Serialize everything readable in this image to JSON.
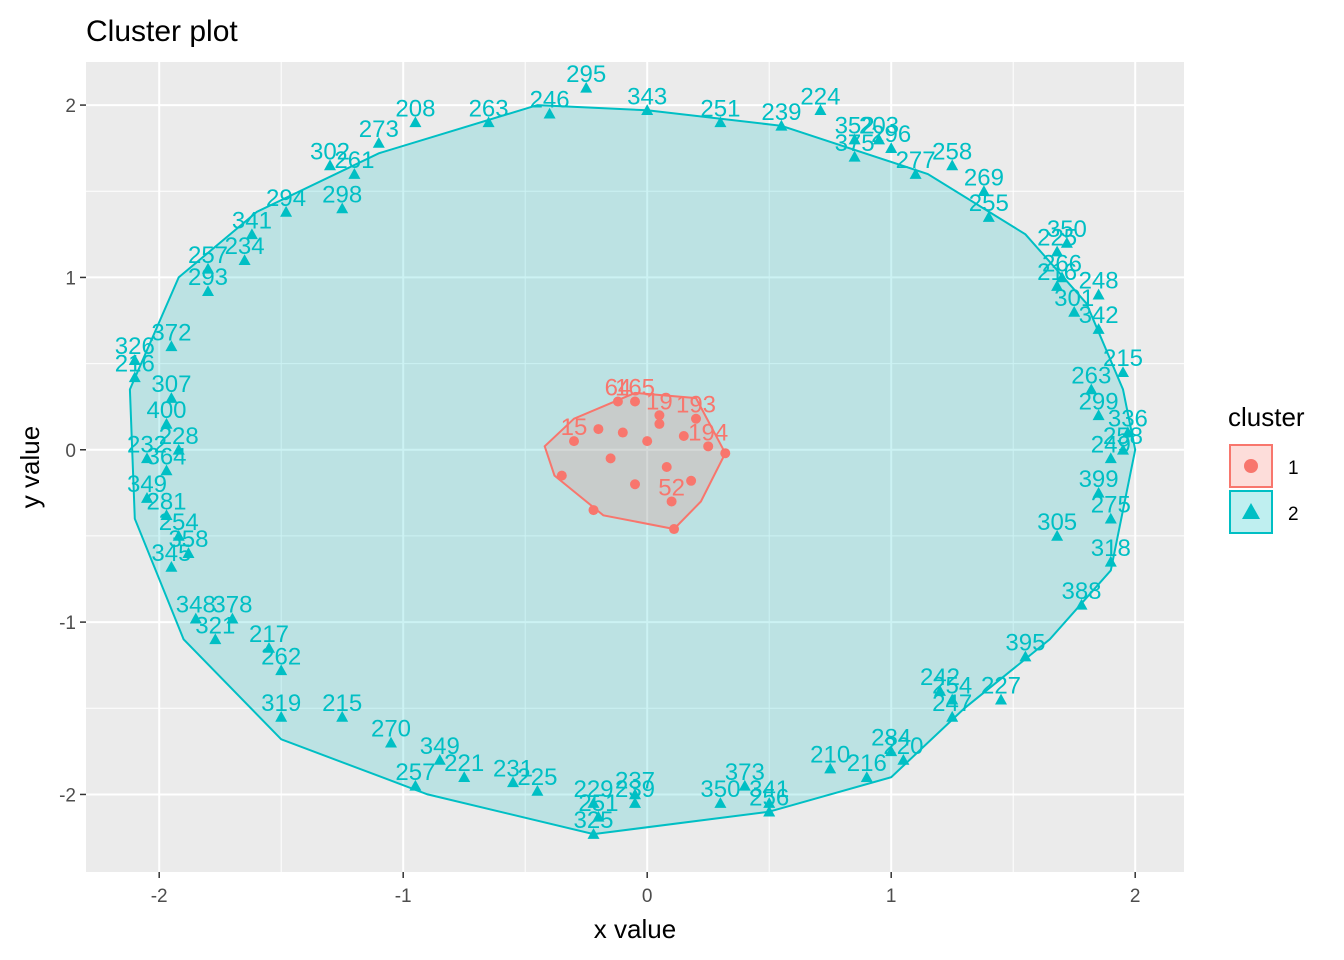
{
  "chart_data": {
    "type": "scatter",
    "title": "Cluster plot",
    "xlabel": "x value",
    "ylabel": "y value",
    "xlim": [
      -2.3,
      2.2
    ],
    "ylim": [
      -2.45,
      2.25
    ],
    "x_ticks": [
      -2,
      -1,
      0,
      1,
      2
    ],
    "y_ticks": [
      -2,
      -1,
      0,
      1,
      2
    ],
    "x_tick_labels": [
      "-2",
      "-1",
      "0",
      "1",
      "2"
    ],
    "y_tick_labels": [
      "-2",
      "-1",
      "0",
      "1",
      "2"
    ],
    "grid": true,
    "legend": {
      "title": "cluster",
      "placement": "right",
      "entries": [
        {
          "label": "1",
          "color": "#F8766D",
          "shape": "circle"
        },
        {
          "label": "2",
          "color": "#00BFC4",
          "shape": "triangle"
        }
      ]
    },
    "colors": {
      "cluster1": "#F8766D",
      "cluster2": "#00BFC4",
      "panel_background": "#EBEBEB",
      "grid": "#FFFFFF"
    },
    "series": [
      {
        "name": "1",
        "shape": "circle",
        "color": "#F8766D",
        "hull": [
          [
            -0.38,
            -0.15
          ],
          [
            -0.18,
            -0.38
          ],
          [
            0.11,
            -0.46
          ],
          [
            0.22,
            -0.3
          ],
          [
            0.32,
            -0.02
          ],
          [
            0.2,
            0.3
          ],
          [
            -0.05,
            0.33
          ],
          [
            -0.3,
            0.18
          ],
          [
            -0.42,
            0.02
          ]
        ],
        "points": [
          {
            "x": -0.12,
            "y": 0.28,
            "label": "64"
          },
          {
            "x": -0.05,
            "y": 0.28,
            "label": "165"
          },
          {
            "x": 0.05,
            "y": 0.2,
            "label": "19"
          },
          {
            "x": 0.2,
            "y": 0.18,
            "label": "193"
          },
          {
            "x": 0.25,
            "y": 0.02,
            "label": "194"
          },
          {
            "x": -0.3,
            "y": 0.05,
            "label": "15"
          },
          {
            "x": 0.1,
            "y": -0.3,
            "label": "52"
          },
          {
            "x": -0.35,
            "y": -0.15,
            "label": ""
          },
          {
            "x": -0.22,
            "y": -0.35,
            "label": ""
          },
          {
            "x": 0.11,
            "y": -0.46,
            "label": ""
          },
          {
            "x": 0.32,
            "y": -0.02,
            "label": ""
          },
          {
            "x": -0.1,
            "y": 0.1,
            "label": ""
          },
          {
            "x": 0.0,
            "y": 0.05,
            "label": ""
          },
          {
            "x": 0.08,
            "y": -0.1,
            "label": ""
          },
          {
            "x": -0.05,
            "y": -0.2,
            "label": ""
          },
          {
            "x": 0.15,
            "y": 0.08,
            "label": ""
          },
          {
            "x": -0.2,
            "y": 0.12,
            "label": ""
          },
          {
            "x": 0.18,
            "y": -0.18,
            "label": ""
          },
          {
            "x": -0.15,
            "y": -0.05,
            "label": ""
          },
          {
            "x": 0.05,
            "y": 0.15,
            "label": ""
          }
        ]
      },
      {
        "name": "2",
        "shape": "triangle",
        "color": "#00BFC4",
        "hull": [
          [
            -0.45,
            2.0
          ],
          [
            0.0,
            1.97
          ],
          [
            0.55,
            1.88
          ],
          [
            1.15,
            1.6
          ],
          [
            1.55,
            1.25
          ],
          [
            1.8,
            0.85
          ],
          [
            1.95,
            0.35
          ],
          [
            2.0,
            0.0
          ],
          [
            1.9,
            -0.7
          ],
          [
            1.65,
            -1.1
          ],
          [
            1.3,
            -1.5
          ],
          [
            1.0,
            -1.9
          ],
          [
            0.5,
            -2.1
          ],
          [
            -0.22,
            -2.23
          ],
          [
            -0.9,
            -2.0
          ],
          [
            -1.5,
            -1.68
          ],
          [
            -1.9,
            -1.1
          ],
          [
            -2.1,
            -0.4
          ],
          [
            -2.12,
            0.35
          ],
          [
            -1.92,
            1.0
          ],
          [
            -1.6,
            1.38
          ],
          [
            -1.1,
            1.72
          ],
          [
            -0.45,
            2.0
          ]
        ],
        "points": [
          {
            "x": -0.25,
            "y": 2.1,
            "label": "295"
          },
          {
            "x": 0.0,
            "y": 1.97,
            "label": "343"
          },
          {
            "x": 0.3,
            "y": 1.9,
            "label": "251"
          },
          {
            "x": 0.55,
            "y": 1.88,
            "label": "239"
          },
          {
            "x": 0.71,
            "y": 1.97,
            "label": "224"
          },
          {
            "x": -0.95,
            "y": 1.9,
            "label": "208"
          },
          {
            "x": -0.65,
            "y": 1.9,
            "label": "263"
          },
          {
            "x": -0.4,
            "y": 1.95,
            "label": "246"
          },
          {
            "x": -1.1,
            "y": 1.78,
            "label": "273"
          },
          {
            "x": -1.3,
            "y": 1.65,
            "label": "302"
          },
          {
            "x": -1.2,
            "y": 1.6,
            "label": "261"
          },
          {
            "x": -1.25,
            "y": 1.4,
            "label": "298"
          },
          {
            "x": -1.48,
            "y": 1.38,
            "label": "294"
          },
          {
            "x": -1.62,
            "y": 1.25,
            "label": "341"
          },
          {
            "x": -1.65,
            "y": 1.1,
            "label": "234"
          },
          {
            "x": -1.8,
            "y": 1.05,
            "label": "257"
          },
          {
            "x": -1.8,
            "y": 0.92,
            "label": "293"
          },
          {
            "x": -1.95,
            "y": 0.6,
            "label": "372"
          },
          {
            "x": -2.1,
            "y": 0.52,
            "label": "326"
          },
          {
            "x": -2.1,
            "y": 0.42,
            "label": "216"
          },
          {
            "x": -1.95,
            "y": 0.3,
            "label": "307"
          },
          {
            "x": -1.97,
            "y": 0.15,
            "label": "400"
          },
          {
            "x": -1.92,
            "y": 0.0,
            "label": "228"
          },
          {
            "x": -2.05,
            "y": -0.05,
            "label": "232"
          },
          {
            "x": -1.97,
            "y": -0.12,
            "label": "364"
          },
          {
            "x": -2.05,
            "y": -0.28,
            "label": "349"
          },
          {
            "x": -1.97,
            "y": -0.38,
            "label": "281"
          },
          {
            "x": -1.92,
            "y": -0.5,
            "label": "254"
          },
          {
            "x": -1.88,
            "y": -0.6,
            "label": "358"
          },
          {
            "x": -1.95,
            "y": -0.68,
            "label": "345"
          },
          {
            "x": -1.85,
            "y": -0.98,
            "label": "348"
          },
          {
            "x": -1.7,
            "y": -0.98,
            "label": "378"
          },
          {
            "x": -1.77,
            "y": -1.1,
            "label": "321"
          },
          {
            "x": -1.55,
            "y": -1.15,
            "label": "217"
          },
          {
            "x": -1.5,
            "y": -1.28,
            "label": "262"
          },
          {
            "x": -1.5,
            "y": -1.55,
            "label": "319"
          },
          {
            "x": -1.25,
            "y": -1.55,
            "label": "215"
          },
          {
            "x": -1.05,
            "y": -1.7,
            "label": "270"
          },
          {
            "x": -0.85,
            "y": -1.8,
            "label": "349"
          },
          {
            "x": -0.75,
            "y": -1.9,
            "label": "221"
          },
          {
            "x": -0.55,
            "y": -1.93,
            "label": "231"
          },
          {
            "x": -0.45,
            "y": -1.98,
            "label": "225"
          },
          {
            "x": -0.95,
            "y": -1.95,
            "label": "257"
          },
          {
            "x": -0.22,
            "y": -2.05,
            "label": "229"
          },
          {
            "x": -0.05,
            "y": -2.0,
            "label": "237"
          },
          {
            "x": -0.05,
            "y": -2.05,
            "label": "239"
          },
          {
            "x": -0.2,
            "y": -2.13,
            "label": "251"
          },
          {
            "x": -0.22,
            "y": -2.23,
            "label": "325"
          },
          {
            "x": 0.3,
            "y": -2.05,
            "label": "350"
          },
          {
            "x": 0.4,
            "y": -1.95,
            "label": "373"
          },
          {
            "x": 0.5,
            "y": -2.05,
            "label": "341"
          },
          {
            "x": 0.5,
            "y": -2.1,
            "label": "256"
          },
          {
            "x": 0.75,
            "y": -1.85,
            "label": "210"
          },
          {
            "x": 0.9,
            "y": -1.9,
            "label": "216"
          },
          {
            "x": 1.0,
            "y": -1.75,
            "label": "284"
          },
          {
            "x": 1.05,
            "y": -1.8,
            "label": "220"
          },
          {
            "x": 1.2,
            "y": -1.4,
            "label": "242"
          },
          {
            "x": 1.25,
            "y": -1.45,
            "label": "254"
          },
          {
            "x": 1.25,
            "y": -1.55,
            "label": "247"
          },
          {
            "x": 1.45,
            "y": -1.45,
            "label": "227"
          },
          {
            "x": 1.55,
            "y": -1.2,
            "label": "395"
          },
          {
            "x": 1.78,
            "y": -0.9,
            "label": "388"
          },
          {
            "x": 1.9,
            "y": -0.65,
            "label": "318"
          },
          {
            "x": 1.68,
            "y": -0.5,
            "label": "305"
          },
          {
            "x": 1.9,
            "y": -0.4,
            "label": "275"
          },
          {
            "x": 1.85,
            "y": -0.25,
            "label": "399"
          },
          {
            "x": 1.9,
            "y": -0.05,
            "label": "249"
          },
          {
            "x": 1.95,
            "y": 0.0,
            "label": "258"
          },
          {
            "x": 1.97,
            "y": 0.1,
            "label": "336"
          },
          {
            "x": 1.85,
            "y": 0.2,
            "label": "299"
          },
          {
            "x": 1.82,
            "y": 0.35,
            "label": "263"
          },
          {
            "x": 1.95,
            "y": 0.45,
            "label": "215"
          },
          {
            "x": 1.85,
            "y": 0.7,
            "label": "342"
          },
          {
            "x": 1.85,
            "y": 0.9,
            "label": "248"
          },
          {
            "x": 1.68,
            "y": 0.95,
            "label": "216"
          },
          {
            "x": 1.68,
            "y": 1.15,
            "label": "225"
          },
          {
            "x": 1.72,
            "y": 1.2,
            "label": "350"
          },
          {
            "x": 1.75,
            "y": 0.8,
            "label": "301"
          },
          {
            "x": 1.7,
            "y": 1.0,
            "label": "266"
          },
          {
            "x": 1.38,
            "y": 1.5,
            "label": "269"
          },
          {
            "x": 1.4,
            "y": 1.35,
            "label": "255"
          },
          {
            "x": 1.25,
            "y": 1.65,
            "label": "258"
          },
          {
            "x": 1.1,
            "y": 1.6,
            "label": "277"
          },
          {
            "x": 1.0,
            "y": 1.75,
            "label": "296"
          },
          {
            "x": 0.95,
            "y": 1.8,
            "label": "203"
          },
          {
            "x": 0.85,
            "y": 1.8,
            "label": "352"
          },
          {
            "x": 0.85,
            "y": 1.7,
            "label": "375"
          }
        ]
      }
    ]
  }
}
